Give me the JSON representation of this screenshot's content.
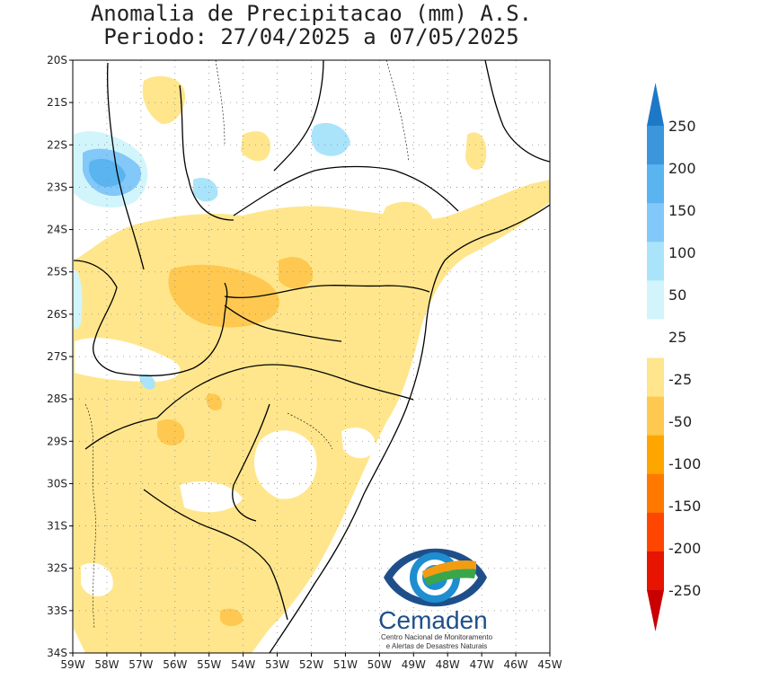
{
  "title": {
    "line1": "Anomalia de Precipitacao (mm) A.S.",
    "line2": "Periodo: 27/04/2025 a 07/05/2025"
  },
  "map": {
    "lat_labels": [
      "20S",
      "21S",
      "22S",
      "23S",
      "24S",
      "25S",
      "26S",
      "27S",
      "28S",
      "29S",
      "30S",
      "31S",
      "32S",
      "33S",
      "34S"
    ],
    "lon_labels": [
      "59W",
      "58W",
      "57W",
      "56W",
      "55W",
      "54W",
      "53W",
      "52W",
      "51W",
      "50W",
      "49W",
      "48W",
      "47W",
      "46W",
      "45W"
    ],
    "lat_range": [
      -34,
      -20
    ],
    "lon_range": [
      -59,
      -45
    ],
    "grid": "dotted"
  },
  "colorbar": {
    "labels": [
      "250",
      "200",
      "150",
      "100",
      "50",
      "25",
      "-25",
      "-50",
      "-100",
      "-150",
      "-200",
      "-250"
    ],
    "colors": [
      "#1e78c8",
      "#3c96dc",
      "#5ab4f0",
      "#82c8f8",
      "#aae4fa",
      "#d2f5fc",
      "#ffffff",
      "#ffe68c",
      "#ffc850",
      "#ffa500",
      "#ff7800",
      "#ff4600",
      "#e61400",
      "#c80000"
    ],
    "top_arrow_color": "#1e78c8",
    "bottom_arrow_color": "#c80000"
  },
  "logo": {
    "name": "Cemaden",
    "subtitle_line1": "Centro Nacional de Monitoramento",
    "subtitle_line2": "e Alertas de Desastres Naturais"
  }
}
